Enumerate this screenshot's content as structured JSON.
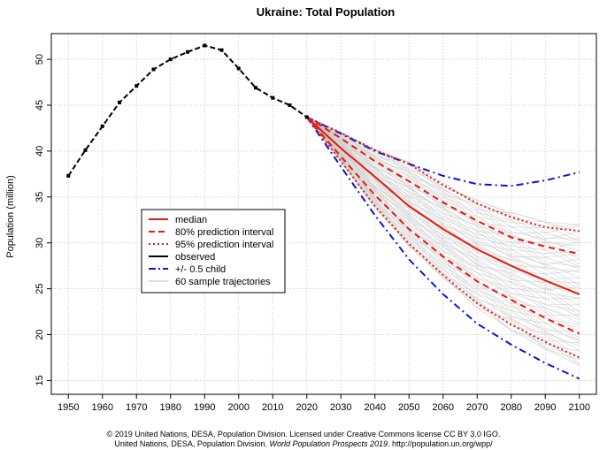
{
  "chart_data": {
    "type": "line",
    "title": "Ukraine: Total Population",
    "xlabel": "",
    "ylabel": "Population (million)",
    "xlim": [
      1945,
      2105
    ],
    "ylim": [
      13.5,
      52.8
    ],
    "x_ticks": [
      1950,
      1960,
      1970,
      1980,
      1990,
      2000,
      2010,
      2020,
      2030,
      2040,
      2050,
      2060,
      2070,
      2080,
      2090,
      2100
    ],
    "y_ticks": [
      15,
      20,
      25,
      30,
      35,
      40,
      45,
      50
    ],
    "grid": true,
    "legend_position": "left-center",
    "legend": [
      {
        "label": "median",
        "color": "#e8190f",
        "style": "solid"
      },
      {
        "label": "80% prediction interval",
        "color": "#e8190f",
        "style": "dashed"
      },
      {
        "label": "95% prediction interval",
        "color": "#e8190f",
        "style": "dotted"
      },
      {
        "label": "observed",
        "color": "#000000",
        "style": "solid"
      },
      {
        "label": "+/- 0.5 child",
        "color": "#0b14d8",
        "style": "dashdot"
      },
      {
        "label": "60 sample trajectories",
        "color": "#bdbdbd",
        "style": "solid"
      }
    ],
    "observed": {
      "x": [
        1950,
        1955,
        1960,
        1965,
        1970,
        1975,
        1980,
        1985,
        1990,
        1995,
        2000,
        2005,
        2010,
        2015,
        2020
      ],
      "y": [
        37.3,
        40.1,
        42.7,
        45.3,
        47.1,
        48.9,
        50.0,
        50.8,
        51.5,
        51.0,
        49.0,
        46.9,
        45.8,
        45.0,
        43.7
      ]
    },
    "projection_x": [
      2020,
      2030,
      2040,
      2050,
      2060,
      2070,
      2080,
      2090,
      2100
    ],
    "median": [
      43.7,
      40.3,
      37.2,
      34.0,
      31.5,
      29.3,
      27.5,
      25.9,
      24.4
    ],
    "pi80_upper": [
      43.7,
      41.4,
      38.9,
      36.7,
      34.4,
      32.4,
      30.6,
      29.6,
      28.8
    ],
    "pi80_lower": [
      43.7,
      39.4,
      35.2,
      31.5,
      28.5,
      25.8,
      23.8,
      21.8,
      20.1
    ],
    "pi95_upper": [
      43.7,
      42.0,
      40.1,
      38.6,
      36.3,
      34.3,
      32.8,
      31.7,
      31.3
    ],
    "pi95_lower": [
      43.7,
      38.9,
      34.0,
      29.9,
      26.5,
      23.4,
      21.1,
      19.2,
      17.5
    ],
    "half_child_upper": [
      43.7,
      41.9,
      40.0,
      38.6,
      37.3,
      36.4,
      36.2,
      36.8,
      37.7
    ],
    "half_child_lower": [
      43.7,
      38.3,
      33.0,
      28.2,
      24.4,
      21.2,
      18.9,
      16.9,
      15.2
    ]
  },
  "footer": {
    "line1": "© 2019 United Nations, DESA, Population Division. Licensed under Creative Commons license CC BY 3.0 IGO.",
    "line2_prefix": "United Nations, DESA, Population Division.",
    "line2_italic": "World Population Prospects 2019",
    "line2_suffix": ". http://population.un.org/wpp/"
  }
}
